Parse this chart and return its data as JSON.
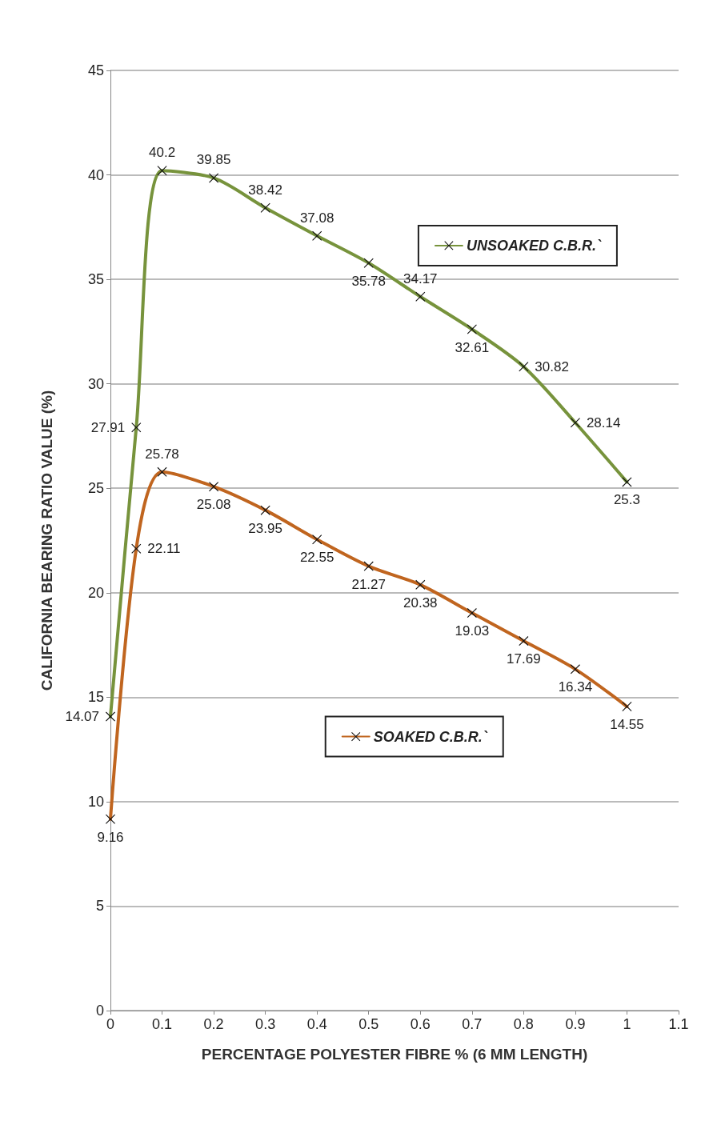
{
  "chart_data": {
    "type": "line",
    "xlabel": "PERCENTAGE POLYESTER FIBRE % (6 MM LENGTH)",
    "ylabel": "CALIFORNIA BEARING RATIO VALUE (%)",
    "x": [
      0,
      0.05,
      0.1,
      0.2,
      0.3,
      0.4,
      0.5,
      0.6,
      0.7,
      0.8,
      0.9,
      1
    ],
    "series": [
      {
        "name": "UNSOAKED C.B.R.`",
        "color": "#77933c",
        "values": [
          14.07,
          27.91,
          40.2,
          39.85,
          38.42,
          37.08,
          35.78,
          34.17,
          32.61,
          30.82,
          28.14,
          25.3
        ]
      },
      {
        "name": "SOAKED C.B.R.`",
        "color": "#c0651f",
        "values": [
          9.16,
          22.11,
          25.78,
          25.08,
          23.95,
          22.55,
          21.27,
          20.38,
          19.03,
          17.69,
          16.34,
          14.55
        ]
      }
    ],
    "xlim": [
      0,
      1.1
    ],
    "xticks": [
      0,
      0.1,
      0.2,
      0.3,
      0.4,
      0.5,
      0.6,
      0.7,
      0.8,
      0.9,
      1,
      1.1
    ],
    "ylim": [
      0,
      45
    ],
    "yticks": [
      0,
      5,
      10,
      15,
      20,
      25,
      30,
      35,
      40,
      45
    ],
    "grid": "y",
    "legend": "right",
    "marker": "cross",
    "line_style": "solid",
    "data_labels": true
  }
}
